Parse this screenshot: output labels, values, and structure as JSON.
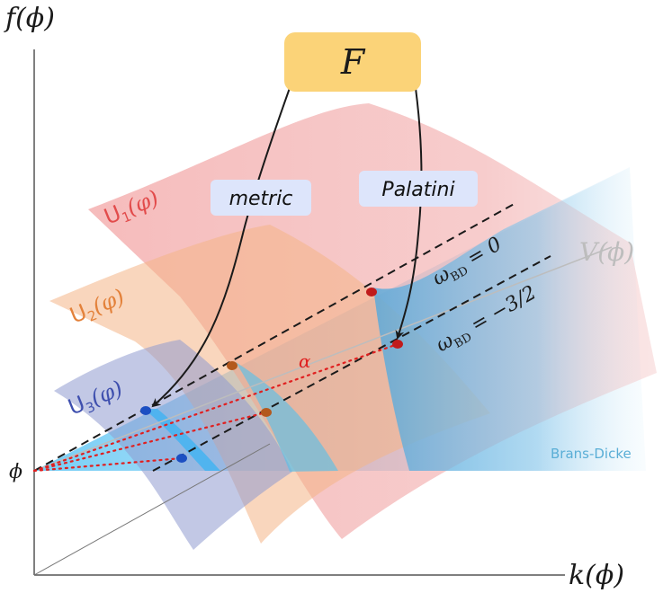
{
  "axes": {
    "y_label": "f(ϕ)",
    "x_label": "k(ϕ)",
    "origin_label": "ϕ"
  },
  "box": {
    "label": "F",
    "color": "#fbd378"
  },
  "branches": {
    "metric": "metric",
    "palatini": "Palatini"
  },
  "surfaces": {
    "u1": {
      "label_main": "U",
      "label_sub": "1",
      "label_arg": "(φ)",
      "color": "#e24b4b"
    },
    "u2": {
      "label_main": "U",
      "label_sub": "2",
      "label_arg": "(φ)",
      "color": "#e3813a"
    },
    "u3": {
      "label_main": "U",
      "label_sub": "3",
      "label_arg": "(φ)",
      "color": "#3e4fae"
    }
  },
  "potential": {
    "label": "V(ϕ)",
    "color": "#bdbdbd"
  },
  "lines": {
    "omega_zero": {
      "main": "ω",
      "sub": "BD",
      "rest": " = 0"
    },
    "omega_neg": {
      "main": "ω",
      "sub": "BD",
      "rest": " = −3/2"
    },
    "alpha": "α"
  },
  "brans_dicke": {
    "label": "Brans-Dicke",
    "color": "#5aaed6"
  },
  "colors": {
    "red": "#c01b1b",
    "orange": "#b3591e",
    "blue": "#1c4fc2",
    "alpha_red": "#e02020",
    "axis": "#555555",
    "chip_bg": "#dde5fb"
  }
}
